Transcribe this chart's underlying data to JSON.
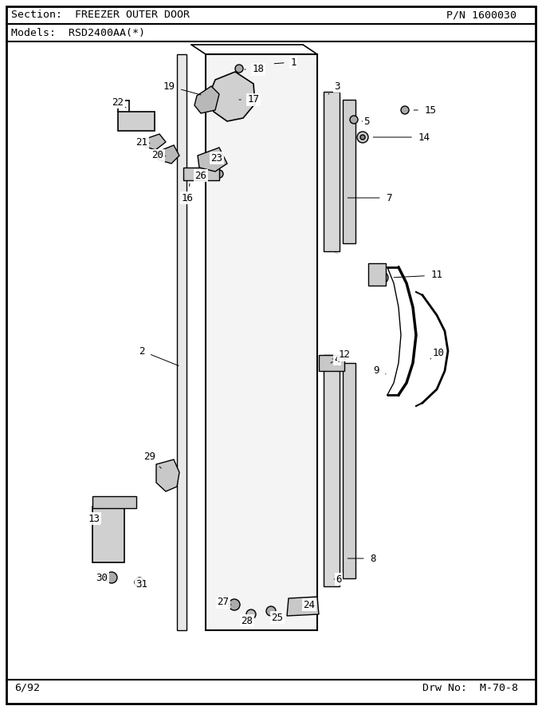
{
  "title_section": "Section:  FREEZER OUTER DOOR",
  "title_pn": "P/N 1600030",
  "title_models": "Models:  RSD2400AA(*)",
  "footer_left": "6/92",
  "footer_right": "Drw No:  M-70-8",
  "bg_color": "#ffffff",
  "lc": "#000000",
  "tc": "#000000",
  "figsize": [
    6.8,
    8.9
  ],
  "dpi": 100
}
